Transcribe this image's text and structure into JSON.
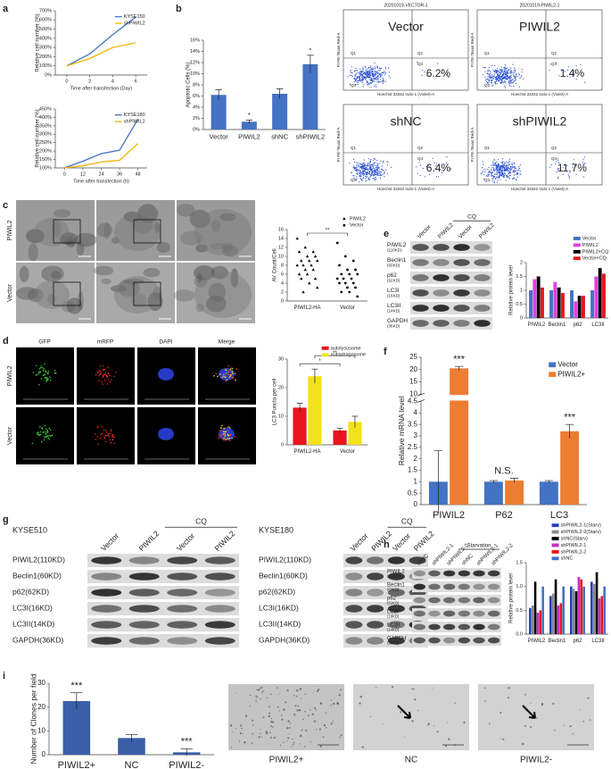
{
  "chart_data": [
    {
      "type": "line",
      "x_label": "Time after transfection (Day)",
      "y_label": "Relative cell number (%)",
      "x": [
        0,
        2,
        4,
        6
      ],
      "xlim": [
        -1,
        7
      ],
      "xticks": [
        0,
        2,
        4,
        6
      ],
      "ylim": [
        0,
        700
      ],
      "yticks": [
        {
          "value": 0,
          "label": "0%"
        },
        {
          "value": 100,
          "label": "100%"
        },
        {
          "value": 200,
          "label": "200%"
        },
        {
          "value": 300,
          "label": "300%"
        },
        {
          "value": 400,
          "label": "400%"
        },
        {
          "value": 500,
          "label": "500%"
        },
        {
          "value": 600,
          "label": "600%"
        },
        {
          "value": 700,
          "label": "700%"
        }
      ],
      "legend": "upper right",
      "series": [
        {
          "name": "KYSE150",
          "color": "#4472c4",
          "values": [
            100,
            230,
            440,
            630
          ]
        },
        {
          "name": "shPIWIL2",
          "color": "#f0b400",
          "values": [
            100,
            180,
            300,
            350
          ]
        }
      ]
    },
    {
      "type": "line",
      "x_label": "Time after transfection (h)",
      "y_label": "Relative cell number (%)",
      "x": [
        0,
        12,
        24,
        36,
        48
      ],
      "xlim": [
        -6,
        54
      ],
      "xticks": [
        0,
        12,
        24,
        36,
        48
      ],
      "ylim": [
        100,
        450
      ],
      "yticks": [
        {
          "value": 100,
          "label": "100%"
        },
        {
          "value": 150,
          "label": "150%"
        },
        {
          "value": 200,
          "label": "200%"
        },
        {
          "value": 250,
          "label": "250%"
        },
        {
          "value": 300,
          "label": "300%"
        },
        {
          "value": 350,
          "label": "350%"
        },
        {
          "value": 400,
          "label": "400%"
        },
        {
          "value": 450,
          "label": "450%"
        }
      ],
      "legend": "upper right",
      "series": [
        {
          "name": "KYSE180",
          "color": "#4472c4",
          "values": [
            100,
            140,
            185,
            205,
            390
          ]
        },
        {
          "name": "shPIWIL2",
          "color": "#f0b400",
          "values": [
            100,
            113,
            135,
            145,
            245
          ]
        }
      ]
    },
    {
      "type": "bar",
      "y_label": "Apoptotic Cells (%)",
      "categories": [
        "Vector",
        "PIWIL2",
        "shNC",
        "shPIWIL2"
      ],
      "values": [
        6.2,
        1.4,
        6.4,
        11.7
      ],
      "errors": [
        0.9,
        0.3,
        0.9,
        1.6
      ],
      "color": "#4472c4",
      "ylim": [
        0,
        16
      ],
      "yticks": [
        {
          "value": 0,
          "label": "0%"
        },
        {
          "value": 2,
          "label": "2%"
        },
        {
          "value": 4,
          "label": "4%"
        },
        {
          "value": 6,
          "label": "6%"
        },
        {
          "value": 8,
          "label": "8%"
        },
        {
          "value": 10,
          "label": "10%"
        },
        {
          "value": 12,
          "label": "12%"
        },
        {
          "value": 14,
          "label": "14%"
        },
        {
          "value": 16,
          "label": "16%"
        }
      ],
      "annotations": [
        {
          "category": "PIWIL2",
          "text": "*"
        },
        {
          "category": "shPIWIL2",
          "text": "*"
        }
      ]
    },
    {
      "type": "strip",
      "y_label": "AV Count/Cell",
      "categories": [
        "PIWIL2-HA",
        "Vector"
      ],
      "ylim": [
        0,
        16
      ],
      "yticks": [
        0,
        2,
        4,
        6,
        8,
        10,
        12,
        14,
        16
      ],
      "legend": "above",
      "series": [
        {
          "name": "PIWIL2",
          "marker": "triangle",
          "color": "#000000",
          "values": [
            14,
            12,
            11,
            11,
            10,
            10,
            9,
            9,
            9,
            8,
            8,
            8,
            7,
            7,
            6,
            6,
            5,
            5,
            4,
            3,
            2
          ]
        },
        {
          "name": "Vector",
          "marker": "circle",
          "color": "#000000",
          "values": [
            13,
            10,
            9,
            8,
            7,
            7,
            6,
            6,
            6,
            5,
            5,
            5,
            4,
            4,
            4,
            3,
            3,
            2,
            2,
            1
          ]
        }
      ],
      "brackets": [
        {
          "text": "**",
          "from": "PIWIL2-HA",
          "to": "Vector"
        }
      ]
    },
    {
      "type": "bar",
      "y_label": "LC3 Puncta per cell",
      "categories": [
        "PIWIL2-HA",
        "Vector"
      ],
      "ylim": [
        0,
        30
      ],
      "yticks": [
        0,
        10,
        20,
        30
      ],
      "legend": "above",
      "series": [
        {
          "name": "autolysosome",
          "color": "#e8141c",
          "values": [
            13,
            5
          ],
          "errors": [
            1.5,
            0.8
          ]
        },
        {
          "name": "autophagosome",
          "color": "#f2e21a",
          "values": [
            24,
            8
          ],
          "errors": [
            2.5,
            2
          ]
        }
      ],
      "brackets": [
        {
          "text": "*",
          "from": "PIWIL2-HA",
          "to": "Vector",
          "series": "autolysosome"
        },
        {
          "text": "**",
          "from": "PIWIL2-HA",
          "to": "Vector",
          "series": "autophagosome"
        }
      ]
    },
    {
      "type": "bar",
      "y_label": "Relative protein level",
      "categories": [
        "PIWIL2",
        "Beclin1",
        "p62",
        "LC3II"
      ],
      "ylim": [
        0,
        2
      ],
      "yticks": [
        0,
        0.5,
        1,
        1.5,
        2
      ],
      "legend": "above",
      "series": [
        {
          "name": "Vector",
          "color": "#4472c4",
          "values": [
            1,
            1,
            1,
            1
          ]
        },
        {
          "name": "PIWIL2",
          "color": "#e040e0",
          "values": [
            1.4,
            1.3,
            0.6,
            1.5
          ]
        },
        {
          "name": "PIWIL2+CQ",
          "color": "#000000",
          "values": [
            1.5,
            1.1,
            0.8,
            1.8
          ]
        },
        {
          "name": "Vector+CQ",
          "color": "#e8141c",
          "values": [
            1.1,
            0.9,
            0.8,
            1.6
          ]
        }
      ]
    },
    {
      "type": "bar",
      "y_label": "Relative mRNA level",
      "categories": [
        "PIWIL2",
        "P62",
        "LC3"
      ],
      "ylim": [
        0,
        25
      ],
      "y_break": [
        4.5,
        10
      ],
      "yticks": [
        0,
        0.5,
        1,
        1.5,
        2,
        2.5,
        3,
        3.5,
        4,
        4.5,
        10,
        15,
        20,
        25
      ],
      "legend": "upper right",
      "series": [
        {
          "name": "Vector",
          "color": "#4472c4",
          "values": [
            1,
            1,
            1
          ],
          "errors": [
            1.35,
            0.05,
            0.05
          ]
        },
        {
          "name": "PIWIL2+",
          "color": "#ed7d31",
          "values": [
            20.5,
            1.05,
            3.2
          ],
          "errors": [
            0.8,
            0.1,
            0.3
          ]
        }
      ],
      "annotations": [
        {
          "category": "PIWIL2",
          "series": "PIWIL2+",
          "text": "***"
        },
        {
          "category": "P62",
          "text": "N.S."
        },
        {
          "category": "LC3",
          "series": "PIWIL2+",
          "text": "***"
        }
      ]
    },
    {
      "type": "bar",
      "y_label": "Relative protein level",
      "categories": [
        "PIWIL2",
        "Beclin1",
        "p62",
        "LC3II"
      ],
      "ylim": [
        0,
        1.5
      ],
      "yticks": [
        {
          "value": 0,
          "label": "0.0"
        },
        {
          "value": 0.5,
          "label": "0.5"
        },
        {
          "value": 1,
          "label": "1.0"
        },
        {
          "value": 1.5,
          "label": "1.5"
        }
      ],
      "legend": "above",
      "series": [
        {
          "name": "shPIWIL2-1(Starv)",
          "color": "#1f3fbf",
          "values": [
            0.55,
            0.8,
            1.0,
            1.1
          ]
        },
        {
          "name": "shPIWIL2-2(Starv)",
          "color": "#8a8a8a",
          "values": [
            0.6,
            0.85,
            0.95,
            1.05
          ]
        },
        {
          "name": "shNC(Starv)",
          "color": "#000000",
          "values": [
            1.1,
            1.15,
            0.9,
            1.3
          ]
        },
        {
          "name": "shPIWIL2-1",
          "color": "#c030c0",
          "values": [
            0.45,
            0.6,
            1.2,
            0.75
          ]
        },
        {
          "name": "shPIWIL2-2",
          "color": "#e8141c",
          "values": [
            0.5,
            0.65,
            1.15,
            0.8
          ]
        },
        {
          "name": "shNC",
          "color": "#4472c4",
          "values": [
            1,
            1,
            1,
            1
          ]
        }
      ]
    },
    {
      "type": "bar",
      "y_label": "Number of Clones per field",
      "categories": [
        "PIWIL2+",
        "NC",
        "PIWIL2-"
      ],
      "values": [
        22.5,
        7,
        1
      ],
      "errors": [
        3.5,
        1.5,
        1.5
      ],
      "color": "#3a5ea8",
      "ylim": [
        0,
        30
      ],
      "yticks": [
        0,
        10,
        20,
        30
      ],
      "annotations": [
        {
          "category": "PIWIL2+",
          "text": "***"
        },
        {
          "category": "PIWIL2-",
          "text": "***"
        }
      ]
    }
  ],
  "figure": {
    "panel_letters": [
      "a",
      "b",
      "c",
      "d",
      "e",
      "f",
      "g",
      "h",
      "i"
    ],
    "flow": {
      "headers": [
        "20201019-VECTOR-1",
        "20201019-PIWIL2-1"
      ],
      "x_axis": "Hoechst 33342 Indo-1 (Violet)-A",
      "y_axis": "PI PE-Texas Red-A",
      "quadrants": [
        "Q1",
        "Q2",
        "Q3",
        "Q4"
      ],
      "plots": [
        {
          "name": "Vector",
          "percent": "6.2%"
        },
        {
          "name": "PIWIL2",
          "percent": "1.4%"
        },
        {
          "name": "shNC",
          "percent": "6.4%"
        },
        {
          "name": "shPIWIL2",
          "percent": "11.7%"
        }
      ]
    },
    "em_rows": [
      "PIWIL2",
      "Vector"
    ],
    "fluorescence": {
      "columns": [
        "GFP",
        "mRFP",
        "DAPI",
        "Merge"
      ],
      "rows": [
        "PIWIL2",
        "Vector"
      ]
    },
    "blot_e": {
      "columns": [
        "Vector",
        "PIWIL2",
        "Vector",
        "PIWIL2"
      ],
      "group": "CQ",
      "rows": [
        {
          "name": "PIWIL2",
          "size": "(110KD)"
        },
        {
          "name": "Beclin1",
          "size": "(60KD)"
        },
        {
          "name": "p62",
          "size": "(62KD)"
        },
        {
          "name": "LC3I",
          "size": "(16KD)"
        },
        {
          "name": "LC3II",
          "size": "(14KD)"
        },
        {
          "name": "GAPDH",
          "size": "(36KD)"
        }
      ]
    },
    "blot_g": [
      {
        "title": "KYSE510",
        "columns": [
          "Vector",
          "PIWIL2",
          "Vector",
          "PIWIL2"
        ],
        "group": "CQ",
        "rows": [
          {
            "name": "PIWIL2",
            "size": "(110KD)"
          },
          {
            "name": "Beclin1",
            "size": "(60KD)"
          },
          {
            "name": "p62",
            "size": "(62KD)"
          },
          {
            "name": "LC3I",
            "size": "(16KD)"
          },
          {
            "name": "LC3II",
            "size": "(14KD)"
          },
          {
            "name": "GAPDH",
            "size": "(36KD)"
          }
        ]
      },
      {
        "title": "KYSE180",
        "columns": [
          "Vector",
          "PIWIL2",
          "Vector",
          "PIWIL2"
        ],
        "group": "CQ",
        "rows": [
          {
            "name": "PIWIL2",
            "size": "(110KD)"
          },
          {
            "name": "Beclin1",
            "size": "(60KD)"
          },
          {
            "name": "p62",
            "size": "(62KD)"
          },
          {
            "name": "LC3I",
            "size": "(16KD)"
          },
          {
            "name": "LC3II",
            "size": "(14KD)"
          },
          {
            "name": "GAPDH",
            "size": "(36KD)"
          }
        ]
      }
    ],
    "blot_h": {
      "columns": [
        "shNC",
        "shPIWIL2-1",
        "shPIWIL2-2",
        "shNC",
        "shPIWIL2-1",
        "shPIWIL2-2"
      ],
      "group": "Starvation",
      "rows": [
        {
          "name": "PIWIL2",
          "size": "(110KD)"
        },
        {
          "name": "Beclin1",
          "size": "(60KD)"
        },
        {
          "name": "p62",
          "size": "(62KD)"
        },
        {
          "name": "LC3I",
          "size": "(16KD)"
        },
        {
          "name": "LC3II",
          "size": "(14KD)"
        },
        {
          "name": "GAPDH",
          "size": "(36KD)"
        }
      ]
    },
    "colony_labels": [
      "PIWIL2+",
      "NC",
      "PIWIL2-"
    ]
  }
}
